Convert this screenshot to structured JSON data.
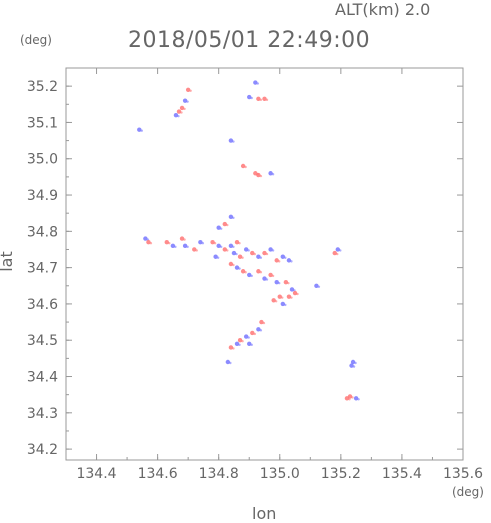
{
  "header": {
    "altitude_label": "ALT(km) 2.0",
    "timestamp": "2018/05/01 22:49:00",
    "y_unit": "(deg)",
    "x_unit": "(deg)"
  },
  "chart_data": {
    "type": "scatter",
    "xlabel": "lon",
    "ylabel": "lat",
    "xlim": [
      134.3,
      135.6
    ],
    "ylim": [
      34.17,
      35.25
    ],
    "xticks": [
      "134.4",
      "134.6",
      "134.8",
      "135.0",
      "135.2",
      "135.4",
      "135.6"
    ],
    "yticks": [
      "34.2",
      "34.3",
      "34.4",
      "34.5",
      "34.6",
      "34.7",
      "34.8",
      "34.9",
      "35.0",
      "35.1",
      "35.2"
    ],
    "colors": {
      "positive": "#ff7777",
      "negative": "#7777ff",
      "axis": "#999999"
    },
    "series": [
      {
        "values": [
          [
            134.92,
            35.21,
            "neg"
          ],
          [
            134.9,
            35.17,
            "neg"
          ],
          [
            134.93,
            35.165,
            "pos"
          ],
          [
            134.95,
            35.165,
            "pos"
          ],
          [
            134.7,
            35.19,
            "pos"
          ],
          [
            134.69,
            35.16,
            "neg"
          ],
          [
            134.68,
            35.14,
            "pos"
          ],
          [
            134.66,
            35.12,
            "neg"
          ],
          [
            134.67,
            35.13,
            "pos"
          ],
          [
            134.54,
            35.08,
            "neg"
          ],
          [
            134.84,
            35.05,
            "neg"
          ],
          [
            134.88,
            34.98,
            "pos"
          ],
          [
            134.92,
            34.96,
            "pos"
          ],
          [
            134.93,
            34.955,
            "pos"
          ],
          [
            134.97,
            34.96,
            "neg"
          ],
          [
            134.84,
            34.84,
            "neg"
          ],
          [
            134.82,
            34.82,
            "pos"
          ],
          [
            134.8,
            34.81,
            "neg"
          ],
          [
            134.56,
            34.78,
            "neg"
          ],
          [
            134.57,
            34.77,
            "pos"
          ],
          [
            134.63,
            34.77,
            "pos"
          ],
          [
            134.65,
            34.76,
            "neg"
          ],
          [
            134.68,
            34.78,
            "pos"
          ],
          [
            134.69,
            34.76,
            "neg"
          ],
          [
            134.72,
            34.75,
            "pos"
          ],
          [
            134.74,
            34.77,
            "neg"
          ],
          [
            134.78,
            34.77,
            "pos"
          ],
          [
            134.8,
            34.76,
            "neg"
          ],
          [
            134.82,
            34.75,
            "pos"
          ],
          [
            134.84,
            34.76,
            "neg"
          ],
          [
            134.86,
            34.77,
            "pos"
          ],
          [
            134.85,
            34.74,
            "neg"
          ],
          [
            134.87,
            34.73,
            "pos"
          ],
          [
            134.89,
            34.75,
            "neg"
          ],
          [
            134.91,
            34.74,
            "pos"
          ],
          [
            134.93,
            34.73,
            "neg"
          ],
          [
            134.95,
            34.74,
            "pos"
          ],
          [
            134.97,
            34.75,
            "neg"
          ],
          [
            134.99,
            34.72,
            "pos"
          ],
          [
            135.01,
            34.73,
            "neg"
          ],
          [
            135.03,
            34.72,
            "neg"
          ],
          [
            134.84,
            34.71,
            "pos"
          ],
          [
            134.86,
            34.7,
            "neg"
          ],
          [
            134.88,
            34.69,
            "pos"
          ],
          [
            134.9,
            34.68,
            "neg"
          ],
          [
            134.93,
            34.69,
            "pos"
          ],
          [
            134.95,
            34.67,
            "neg"
          ],
          [
            134.97,
            34.68,
            "pos"
          ],
          [
            134.99,
            34.66,
            "neg"
          ],
          [
            135.02,
            34.66,
            "pos"
          ],
          [
            135.04,
            34.64,
            "neg"
          ],
          [
            135.0,
            34.62,
            "pos"
          ],
          [
            134.98,
            34.61,
            "pos"
          ],
          [
            135.01,
            34.6,
            "neg"
          ],
          [
            135.03,
            34.62,
            "pos"
          ],
          [
            135.05,
            34.63,
            "pos"
          ],
          [
            135.12,
            34.65,
            "neg"
          ],
          [
            135.18,
            34.74,
            "pos"
          ],
          [
            135.19,
            34.75,
            "neg"
          ],
          [
            134.79,
            34.73,
            "neg"
          ],
          [
            134.94,
            34.55,
            "pos"
          ],
          [
            134.93,
            34.53,
            "neg"
          ],
          [
            134.91,
            34.52,
            "pos"
          ],
          [
            134.89,
            34.51,
            "neg"
          ],
          [
            134.87,
            34.5,
            "pos"
          ],
          [
            134.86,
            34.49,
            "neg"
          ],
          [
            134.84,
            34.48,
            "pos"
          ],
          [
            134.9,
            34.49,
            "neg"
          ],
          [
            134.83,
            34.44,
            "neg"
          ],
          [
            135.24,
            34.44,
            "neg"
          ],
          [
            135.235,
            34.43,
            "neg"
          ],
          [
            135.22,
            34.34,
            "pos"
          ],
          [
            135.23,
            34.345,
            "pos"
          ],
          [
            135.25,
            34.34,
            "neg"
          ]
        ]
      }
    ]
  }
}
